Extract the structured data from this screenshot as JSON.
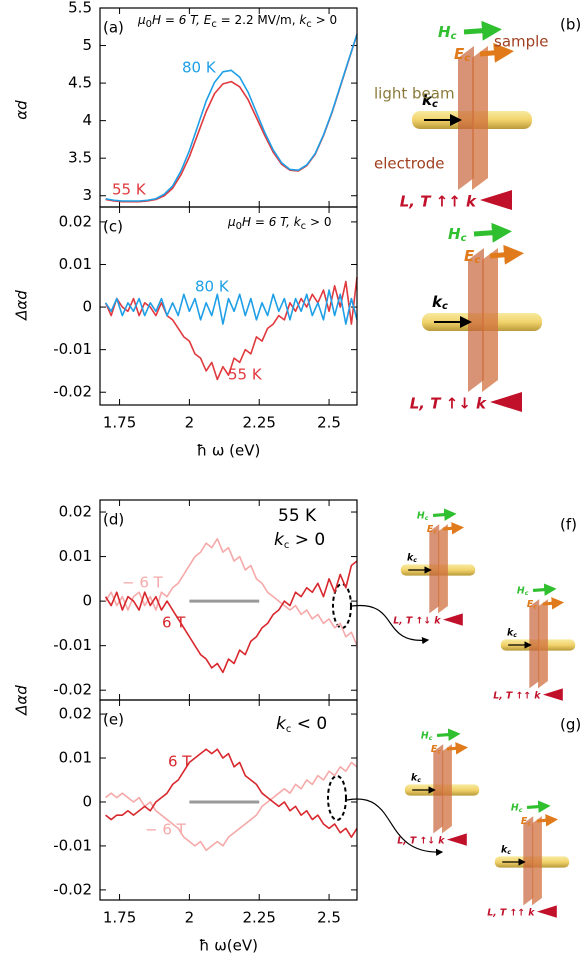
{
  "chart_data": [
    {
      "type": "line",
      "panel_label": "(a)",
      "ylabel": "αd",
      "annotation": [
        "μ",
        "0",
        "H = 6 T, ",
        "E",
        "c",
        " = 2.2 MV/m, ",
        "k",
        "c",
        " > 0"
      ],
      "x": [
        1.7,
        1.73,
        1.76,
        1.79,
        1.82,
        1.85,
        1.88,
        1.91,
        1.94,
        1.97,
        2.0,
        2.03,
        2.06,
        2.09,
        2.12,
        2.15,
        2.18,
        2.21,
        2.24,
        2.27,
        2.3,
        2.33,
        2.36,
        2.39,
        2.42,
        2.45,
        2.48,
        2.51,
        2.54,
        2.57,
        2.6
      ],
      "series": [
        {
          "name": "55 K",
          "color": "#e0393e",
          "values": [
            2.95,
            2.93,
            2.92,
            2.92,
            2.92,
            2.93,
            2.95,
            3.0,
            3.1,
            3.28,
            3.52,
            3.82,
            4.12,
            4.36,
            4.49,
            4.52,
            4.45,
            4.28,
            4.04,
            3.8,
            3.58,
            3.42,
            3.34,
            3.33,
            3.4,
            3.55,
            3.8,
            4.1,
            4.45,
            4.8,
            5.15
          ]
        },
        {
          "name": "80 K",
          "color": "#1e9fe6",
          "values": [
            2.96,
            2.94,
            2.93,
            2.93,
            2.93,
            2.94,
            2.96,
            3.02,
            3.13,
            3.33,
            3.6,
            3.93,
            4.26,
            4.51,
            4.65,
            4.67,
            4.58,
            4.38,
            4.11,
            3.84,
            3.61,
            3.44,
            3.35,
            3.34,
            3.41,
            3.56,
            3.81,
            4.11,
            4.46,
            4.81,
            5.15
          ]
        }
      ],
      "xlim": [
        1.68,
        2.6
      ],
      "ylim": [
        2.85,
        5.5
      ],
      "xticks": [
        1.75,
        2,
        2.25,
        2.5
      ],
      "yticks": [
        3,
        3.5,
        4,
        4.5,
        5,
        5.5
      ],
      "show_xtick_labels": false,
      "zero_line": false
    },
    {
      "type": "line",
      "panel_label": "(c)",
      "ylabel": "Δαd",
      "xlabel": "ħ ω (eV)",
      "annotation": [
        "μ",
        "0",
        "H = 6 T, ",
        "k",
        "c",
        " > 0"
      ],
      "x": [
        1.7,
        1.72,
        1.74,
        1.76,
        1.78,
        1.8,
        1.82,
        1.84,
        1.86,
        1.88,
        1.9,
        1.92,
        1.94,
        1.96,
        1.98,
        2.0,
        2.02,
        2.04,
        2.06,
        2.08,
        2.1,
        2.12,
        2.14,
        2.16,
        2.18,
        2.2,
        2.22,
        2.24,
        2.26,
        2.28,
        2.3,
        2.32,
        2.34,
        2.36,
        2.38,
        2.4,
        2.42,
        2.44,
        2.46,
        2.48,
        2.5,
        2.52,
        2.54,
        2.56,
        2.58,
        2.6
      ],
      "series": [
        {
          "name": "55 K",
          "color": "#e0393e",
          "values": [
            0.001,
            -0.002,
            0.002,
            0.0,
            -0.001,
            0.002,
            -0.002,
            0.001,
            0.0,
            -0.002,
            0.001,
            -0.002,
            -0.003,
            -0.005,
            -0.007,
            -0.008,
            -0.011,
            -0.012,
            -0.015,
            -0.013,
            -0.017,
            -0.014,
            -0.016,
            -0.012,
            -0.013,
            -0.01,
            -0.011,
            -0.007,
            -0.008,
            -0.005,
            -0.004,
            -0.002,
            -0.003,
            0.001,
            -0.001,
            0.002,
            0.0,
            0.003,
            0.001,
            0.004,
            -0.001,
            0.005,
            0.0,
            0.006,
            -0.004,
            0.007
          ]
        },
        {
          "name": "80 K",
          "color": "#1e9fe6",
          "values": [
            0.001,
            -0.001,
            0.002,
            -0.002,
            0.001,
            -0.001,
            0.002,
            -0.002,
            0.001,
            -0.001,
            0.002,
            -0.002,
            0.001,
            -0.002,
            0.003,
            -0.001,
            0.002,
            -0.003,
            0.001,
            -0.002,
            0.003,
            -0.004,
            0.002,
            -0.001,
            0.003,
            -0.002,
            0.002,
            -0.003,
            0.001,
            -0.002,
            0.003,
            -0.001,
            0.002,
            -0.003,
            0.002,
            -0.001,
            0.003,
            -0.002,
            0.001,
            -0.003,
            0.004,
            -0.002,
            0.003,
            -0.004,
            0.002,
            -0.003
          ]
        }
      ],
      "xlim": [
        1.68,
        2.6
      ],
      "ylim": [
        -0.023,
        0.0235
      ],
      "xticks": [
        1.75,
        2,
        2.25,
        2.5
      ],
      "yticks": [
        -0.02,
        -0.01,
        0,
        0.01,
        0.02
      ],
      "show_xtick_labels": true,
      "zero_line": false
    },
    {
      "type": "line",
      "panel_label": "(d)",
      "ylabel": "Δαd",
      "annotation": "55 K",
      "annotation2": [
        "k",
        "c",
        " > 0"
      ],
      "x": [
        1.7,
        1.72,
        1.74,
        1.76,
        1.78,
        1.8,
        1.82,
        1.84,
        1.86,
        1.88,
        1.9,
        1.92,
        1.94,
        1.96,
        1.98,
        2.0,
        2.02,
        2.04,
        2.06,
        2.08,
        2.1,
        2.12,
        2.14,
        2.16,
        2.18,
        2.2,
        2.22,
        2.24,
        2.26,
        2.28,
        2.3,
        2.32,
        2.34,
        2.36,
        2.38,
        2.4,
        2.42,
        2.44,
        2.46,
        2.48,
        2.5,
        2.52,
        2.54,
        2.56,
        2.58,
        2.6
      ],
      "series": [
        {
          "name": "− 6 T",
          "color": "#f6a9a9",
          "values": [
            0.0,
            0.002,
            -0.001,
            0.001,
            -0.002,
            0.001,
            0.002,
            -0.001,
            0.001,
            -0.002,
            0.002,
            0.001,
            0.003,
            0.004,
            0.006,
            0.008,
            0.01,
            0.011,
            0.013,
            0.012,
            0.014,
            0.011,
            0.012,
            0.009,
            0.01,
            0.007,
            0.008,
            0.005,
            0.004,
            0.002,
            0.001,
            0.0,
            -0.001,
            -0.002,
            -0.001,
            -0.003,
            -0.002,
            -0.004,
            -0.003,
            -0.005,
            -0.004,
            -0.006,
            -0.005,
            -0.008,
            -0.007,
            -0.01
          ]
        },
        {
          "name": "6 T",
          "color": "#d8282e",
          "values": [
            0.001,
            -0.001,
            0.002,
            -0.002,
            0.001,
            0.0,
            -0.002,
            0.002,
            -0.001,
            0.001,
            -0.002,
            0.0,
            -0.002,
            -0.004,
            -0.006,
            -0.008,
            -0.01,
            -0.012,
            -0.013,
            -0.015,
            -0.014,
            -0.016,
            -0.013,
            -0.014,
            -0.011,
            -0.012,
            -0.009,
            -0.008,
            -0.006,
            -0.005,
            -0.003,
            -0.002,
            0.0,
            -0.001,
            0.002,
            0.001,
            0.003,
            0.002,
            0.004,
            0.001,
            0.005,
            0.002,
            0.006,
            0.003,
            0.008,
            0.009
          ]
        }
      ],
      "xlim": [
        1.68,
        2.6
      ],
      "ylim": [
        -0.0222,
        0.0227
      ],
      "xticks": [
        1.75,
        2,
        2.25,
        2.5
      ],
      "yticks": [
        -0.02,
        -0.01,
        0,
        0.01,
        0.02
      ],
      "show_xtick_labels": false,
      "zero_line": true
    },
    {
      "type": "line",
      "panel_label": "(e)",
      "xlabel": "ħ ω(eV)",
      "annotation": [
        "k",
        "c",
        " < 0"
      ],
      "x": [
        1.7,
        1.72,
        1.74,
        1.76,
        1.78,
        1.8,
        1.82,
        1.84,
        1.86,
        1.88,
        1.9,
        1.92,
        1.94,
        1.96,
        1.98,
        2.0,
        2.02,
        2.04,
        2.06,
        2.08,
        2.1,
        2.12,
        2.14,
        2.16,
        2.18,
        2.2,
        2.22,
        2.24,
        2.26,
        2.28,
        2.3,
        2.32,
        2.34,
        2.36,
        2.38,
        2.4,
        2.42,
        2.44,
        2.46,
        2.48,
        2.5,
        2.52,
        2.54,
        2.56,
        2.58,
        2.6
      ],
      "series": [
        {
          "name": "− 6 T",
          "color": "#f6a9a9",
          "values": [
            0.001,
            0.002,
            0.001,
            0.002,
            0.001,
            0.0,
            0.001,
            -0.001,
            0.0,
            -0.002,
            -0.003,
            -0.004,
            -0.005,
            -0.006,
            -0.008,
            -0.009,
            -0.01,
            -0.009,
            -0.011,
            -0.01,
            -0.009,
            -0.01,
            -0.008,
            -0.007,
            -0.006,
            -0.005,
            -0.004,
            -0.003,
            -0.001,
            0.0,
            0.001,
            0.002,
            0.003,
            0.002,
            0.004,
            0.003,
            0.005,
            0.004,
            0.006,
            0.005,
            0.007,
            0.006,
            0.008,
            0.007,
            0.009,
            0.008
          ]
        },
        {
          "name": "6 T",
          "color": "#d8282e",
          "values": [
            -0.003,
            -0.004,
            -0.003,
            -0.003,
            -0.002,
            -0.003,
            -0.002,
            -0.001,
            -0.002,
            0.0,
            0.001,
            0.002,
            0.004,
            0.005,
            0.007,
            0.009,
            0.01,
            0.011,
            0.012,
            0.011,
            0.012,
            0.01,
            0.011,
            0.008,
            0.009,
            0.006,
            0.005,
            0.004,
            0.002,
            0.001,
            0.0,
            -0.001,
            0.0,
            -0.002,
            -0.001,
            -0.003,
            -0.002,
            -0.004,
            -0.003,
            -0.005,
            -0.006,
            -0.005,
            -0.007,
            -0.006,
            -0.008,
            -0.006
          ]
        }
      ],
      "xlim": [
        1.68,
        2.6
      ],
      "ylim": [
        -0.0223,
        0.0232
      ],
      "xticks": [
        1.75,
        2,
        2.25,
        2.5
      ],
      "yticks": [
        -0.02,
        -0.01,
        0,
        0.01,
        0.02
      ],
      "show_xtick_labels": true,
      "zero_line": true
    }
  ],
  "diagrams": [
    {
      "label": "(b)",
      "setups": [
        {
          "H": [
            "H",
            "c"
          ],
          "E": [
            "E",
            "c"
          ],
          "k": [
            "k",
            "c"
          ],
          "LT": "L, T ↑↑ k",
          "sample": "sample",
          "beam": "light beam",
          "electrode": "electrode"
        },
        {
          "H": [
            "H",
            "c"
          ],
          "E": [
            "E",
            "c"
          ],
          "k": [
            "k",
            "c"
          ],
          "LT": "L, T ↑↓ k"
        }
      ]
    },
    {
      "label": "(f)",
      "setups": [
        {
          "H": [
            "H",
            "c"
          ],
          "E": [
            "E",
            "c"
          ],
          "k": [
            "k",
            "c"
          ],
          "LT": "L, T ↑↓ k"
        },
        {
          "H": [
            "H",
            "c"
          ],
          "E": [
            "E",
            "c"
          ],
          "k": [
            "k",
            "c"
          ],
          "LT": "L, T ↑↑ k"
        }
      ]
    },
    {
      "label": "(g)",
      "setups": [
        {
          "H": [
            "H",
            "c"
          ],
          "E": [
            "E",
            "c"
          ],
          "k": [
            "k",
            "c"
          ],
          "LT": "L, T ↑↓ k"
        },
        {
          "H": [
            "H",
            "c"
          ],
          "E": [
            "E",
            "c"
          ],
          "k": [
            "k",
            "c"
          ],
          "LT": "L, T ↑↑ k"
        }
      ]
    }
  ]
}
